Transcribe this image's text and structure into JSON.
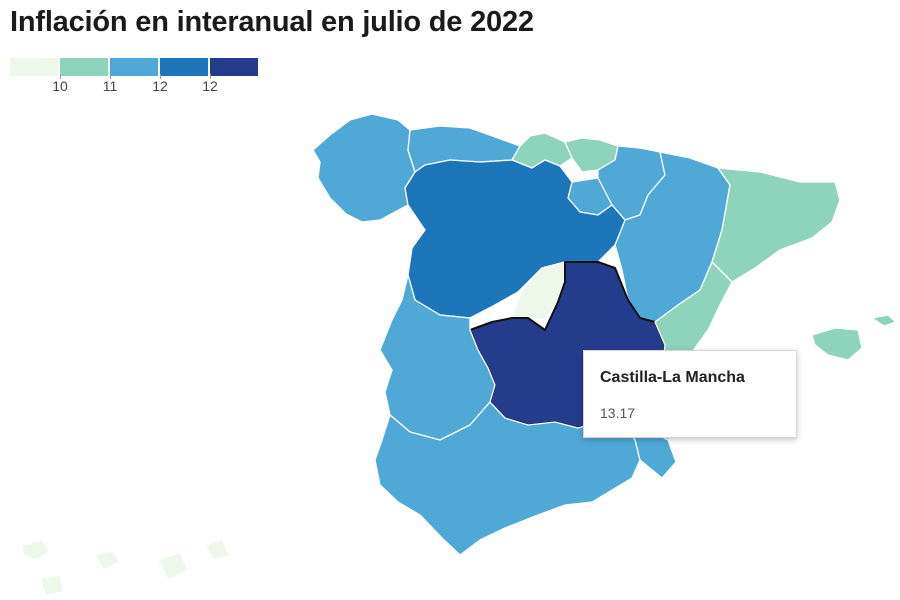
{
  "title": "Inflación en interanual en julio de 2022",
  "legend": {
    "colors": [
      "#eef8ea",
      "#8ed3bb",
      "#4fa8d6",
      "#1d76ba",
      "#233c8c"
    ],
    "labels": [
      "10",
      "11",
      "12",
      "12"
    ]
  },
  "tooltip": {
    "region": "Castilla-La Mancha",
    "value": "13.17"
  },
  "regions": [
    {
      "name": "Galicia",
      "fill": "#4fa8d6"
    },
    {
      "name": "Asturias",
      "fill": "#4fa8d6"
    },
    {
      "name": "Cantabria",
      "fill": "#8ed3bb"
    },
    {
      "name": "País Vasco",
      "fill": "#8ed3bb"
    },
    {
      "name": "Navarra",
      "fill": "#4fa8d6"
    },
    {
      "name": "La Rioja",
      "fill": "#4fa8d6"
    },
    {
      "name": "Aragón",
      "fill": "#4fa8d6"
    },
    {
      "name": "Cataluña",
      "fill": "#8ed3bb"
    },
    {
      "name": "Castilla y León",
      "fill": "#1d76ba"
    },
    {
      "name": "Comunidad de Madrid",
      "fill": "#eef8ea"
    },
    {
      "name": "Castilla-La Mancha",
      "fill": "#233c8c",
      "value": 13.17
    },
    {
      "name": "Comunitat Valenciana",
      "fill": "#8ed3bb"
    },
    {
      "name": "Extremadura",
      "fill": "#4fa8d6"
    },
    {
      "name": "Andalucía",
      "fill": "#4fa8d6"
    },
    {
      "name": "Región de Murcia",
      "fill": "#4fa8d6"
    },
    {
      "name": "Illes Balears",
      "fill": "#8ed3bb"
    },
    {
      "name": "Canarias",
      "fill": "#eef8ea"
    }
  ]
}
